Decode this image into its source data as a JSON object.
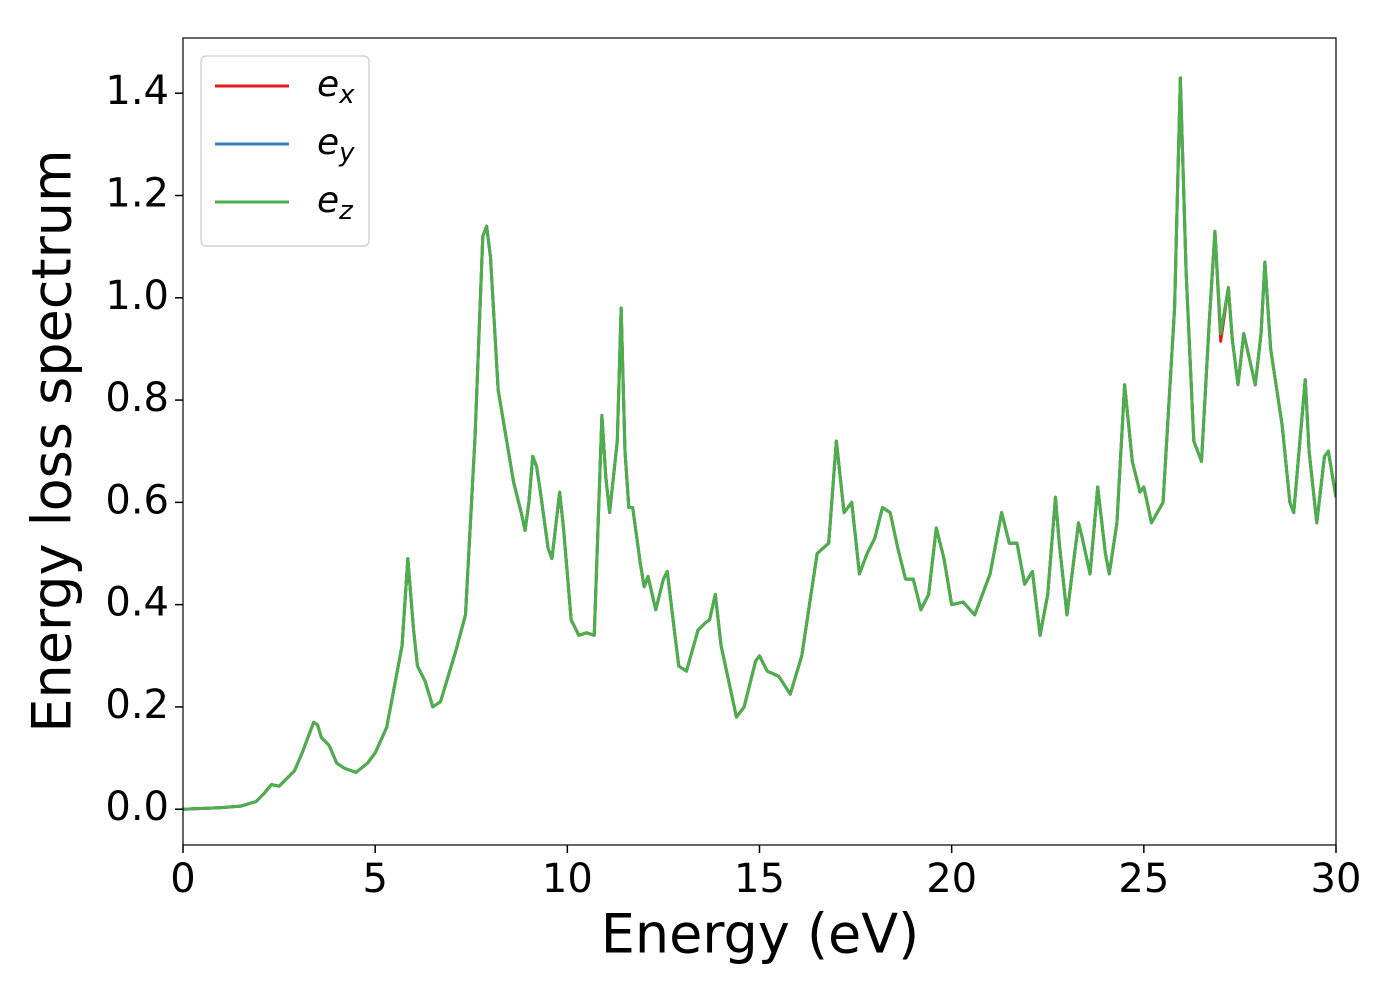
{
  "chart_data": {
    "type": "line",
    "xlabel": "Energy (eV)",
    "ylabel": "Energy loss spectrum",
    "xlim": [
      0,
      30
    ],
    "ylim": [
      -0.07,
      1.508
    ],
    "xticks": [
      0,
      5,
      10,
      15,
      20,
      25,
      30
    ],
    "yticks": [
      {
        "value": 0,
        "label": "0.0"
      },
      {
        "value": 0.2,
        "label": "0.2"
      },
      {
        "value": 0.4,
        "label": "0.4"
      },
      {
        "value": 0.6,
        "label": "0.6"
      },
      {
        "value": 0.8,
        "label": "0.8"
      },
      {
        "value": 1.0,
        "label": "1.0"
      },
      {
        "value": 1.2,
        "label": "1.2"
      },
      {
        "value": 1.4,
        "label": "1.4"
      }
    ],
    "legend": "upper left",
    "x": [
      0,
      1,
      1.5,
      1.9,
      2.1,
      2.3,
      2.5,
      2.7,
      2.9,
      3.1,
      3.4,
      3.5,
      3.6,
      3.8,
      4.0,
      4.2,
      4.5,
      4.8,
      5.0,
      5.3,
      5.5,
      5.7,
      5.85,
      6.0,
      6.1,
      6.3,
      6.5,
      6.7,
      6.9,
      7.1,
      7.35,
      7.6,
      7.8,
      7.9,
      8.0,
      8.2,
      8.4,
      8.6,
      8.8,
      8.9,
      9.0,
      9.1,
      9.2,
      9.3,
      9.5,
      9.6,
      9.8,
      9.9,
      10.1,
      10.3,
      10.5,
      10.7,
      10.9,
      11.0,
      11.1,
      11.3,
      11.4,
      11.5,
      11.6,
      11.7,
      11.9,
      12.0,
      12.1,
      12.3,
      12.5,
      12.6,
      12.8,
      12.9,
      13.1,
      13.4,
      13.6,
      13.7,
      13.85,
      14.0,
      14.2,
      14.4,
      14.6,
      14.9,
      15.0,
      15.2,
      15.5,
      15.8,
      16.1,
      16.3,
      16.5,
      16.8,
      17.0,
      17.2,
      17.4,
      17.6,
      17.8,
      18.0,
      18.2,
      18.4,
      18.6,
      18.8,
      19.0,
      19.2,
      19.4,
      19.6,
      19.8,
      20.0,
      20.3,
      20.6,
      20.9,
      21.0,
      21.3,
      21.5,
      21.7,
      21.9,
      22.1,
      22.3,
      22.5,
      22.7,
      22.8,
      23.0,
      23.3,
      23.4,
      23.6,
      23.8,
      24.0,
      24.1,
      24.3,
      24.5,
      24.7,
      24.9,
      25.0,
      25.2,
      25.5,
      25.8,
      25.95,
      26.1,
      26.3,
      26.5,
      26.7,
      26.85,
      27.0,
      27.2,
      27.3,
      27.45,
      27.6,
      27.75,
      27.9,
      28.05,
      28.15,
      28.3,
      28.6,
      28.8,
      28.9,
      29.2,
      29.3,
      29.5,
      29.7,
      29.8,
      30.0
    ],
    "series": [
      {
        "name": "ex",
        "color": "#e41a1c",
        "values": [
          0,
          0.003,
          0.006,
          0.015,
          0.03,
          0.048,
          0.045,
          0.06,
          0.075,
          0.11,
          0.17,
          0.165,
          0.14,
          0.125,
          0.09,
          0.08,
          0.072,
          0.09,
          0.11,
          0.16,
          0.24,
          0.32,
          0.49,
          0.35,
          0.28,
          0.25,
          0.2,
          0.21,
          0.26,
          0.31,
          0.38,
          0.73,
          1.12,
          1.14,
          1.08,
          0.82,
          0.73,
          0.64,
          0.58,
          0.545,
          0.6,
          0.69,
          0.67,
          0.62,
          0.51,
          0.49,
          0.62,
          0.55,
          0.37,
          0.34,
          0.345,
          0.34,
          0.77,
          0.65,
          0.58,
          0.72,
          0.98,
          0.7,
          0.59,
          0.59,
          0.48,
          0.435,
          0.455,
          0.39,
          0.45,
          0.465,
          0.34,
          0.28,
          0.27,
          0.35,
          0.365,
          0.37,
          0.42,
          0.32,
          0.25,
          0.18,
          0.2,
          0.29,
          0.3,
          0.27,
          0.26,
          0.225,
          0.3,
          0.4,
          0.5,
          0.52,
          0.72,
          0.58,
          0.6,
          0.46,
          0.5,
          0.53,
          0.59,
          0.58,
          0.51,
          0.45,
          0.45,
          0.39,
          0.42,
          0.55,
          0.49,
          0.4,
          0.405,
          0.38,
          0.44,
          0.46,
          0.58,
          0.52,
          0.52,
          0.44,
          0.465,
          0.34,
          0.42,
          0.61,
          0.52,
          0.38,
          0.56,
          0.53,
          0.46,
          0.63,
          0.5,
          0.46,
          0.56,
          0.83,
          0.68,
          0.62,
          0.63,
          0.56,
          0.6,
          0.98,
          1.43,
          1.05,
          0.72,
          0.68,
          0.95,
          1.13,
          0.915,
          1.02,
          0.92,
          0.83,
          0.93,
          0.88,
          0.83,
          0.93,
          1.07,
          0.9,
          0.75,
          0.6,
          0.58,
          0.84,
          0.7,
          0.56,
          0.69,
          0.7,
          0.61
        ]
      },
      {
        "name": "ey",
        "color": "#377eb8",
        "values": [
          0,
          0.003,
          0.006,
          0.015,
          0.03,
          0.048,
          0.045,
          0.06,
          0.075,
          0.11,
          0.17,
          0.165,
          0.14,
          0.125,
          0.09,
          0.08,
          0.072,
          0.09,
          0.11,
          0.16,
          0.24,
          0.32,
          0.49,
          0.35,
          0.28,
          0.25,
          0.2,
          0.21,
          0.26,
          0.31,
          0.38,
          0.73,
          1.12,
          1.14,
          1.08,
          0.82,
          0.73,
          0.64,
          0.58,
          0.545,
          0.6,
          0.69,
          0.67,
          0.62,
          0.51,
          0.49,
          0.62,
          0.55,
          0.37,
          0.34,
          0.345,
          0.34,
          0.77,
          0.65,
          0.58,
          0.72,
          0.98,
          0.7,
          0.59,
          0.59,
          0.48,
          0.435,
          0.455,
          0.39,
          0.45,
          0.465,
          0.34,
          0.28,
          0.27,
          0.35,
          0.365,
          0.37,
          0.42,
          0.32,
          0.25,
          0.18,
          0.2,
          0.29,
          0.3,
          0.27,
          0.26,
          0.225,
          0.3,
          0.4,
          0.5,
          0.52,
          0.72,
          0.58,
          0.6,
          0.46,
          0.5,
          0.53,
          0.59,
          0.58,
          0.51,
          0.45,
          0.45,
          0.39,
          0.42,
          0.55,
          0.49,
          0.4,
          0.405,
          0.38,
          0.44,
          0.46,
          0.58,
          0.52,
          0.52,
          0.44,
          0.465,
          0.34,
          0.42,
          0.61,
          0.52,
          0.38,
          0.56,
          0.53,
          0.46,
          0.63,
          0.5,
          0.46,
          0.56,
          0.83,
          0.68,
          0.62,
          0.63,
          0.56,
          0.6,
          0.98,
          1.43,
          1.05,
          0.72,
          0.68,
          0.95,
          1.13,
          0.93,
          1.02,
          0.92,
          0.83,
          0.93,
          0.88,
          0.83,
          0.93,
          1.07,
          0.9,
          0.75,
          0.6,
          0.58,
          0.84,
          0.7,
          0.56,
          0.69,
          0.7,
          0.61
        ]
      },
      {
        "name": "ez",
        "color": "#4daf4a",
        "values": [
          0,
          0.003,
          0.006,
          0.015,
          0.03,
          0.048,
          0.045,
          0.06,
          0.075,
          0.11,
          0.17,
          0.165,
          0.14,
          0.125,
          0.09,
          0.08,
          0.072,
          0.09,
          0.11,
          0.16,
          0.24,
          0.32,
          0.49,
          0.35,
          0.28,
          0.25,
          0.2,
          0.21,
          0.26,
          0.31,
          0.38,
          0.73,
          1.12,
          1.14,
          1.08,
          0.82,
          0.73,
          0.64,
          0.58,
          0.545,
          0.6,
          0.69,
          0.67,
          0.62,
          0.51,
          0.49,
          0.62,
          0.55,
          0.37,
          0.34,
          0.345,
          0.34,
          0.77,
          0.65,
          0.58,
          0.72,
          0.98,
          0.7,
          0.59,
          0.59,
          0.48,
          0.435,
          0.455,
          0.39,
          0.45,
          0.465,
          0.34,
          0.28,
          0.27,
          0.35,
          0.365,
          0.37,
          0.42,
          0.32,
          0.25,
          0.18,
          0.2,
          0.29,
          0.3,
          0.27,
          0.26,
          0.225,
          0.3,
          0.4,
          0.5,
          0.52,
          0.72,
          0.58,
          0.6,
          0.46,
          0.5,
          0.53,
          0.59,
          0.58,
          0.51,
          0.45,
          0.45,
          0.39,
          0.42,
          0.55,
          0.49,
          0.4,
          0.405,
          0.38,
          0.44,
          0.46,
          0.58,
          0.52,
          0.52,
          0.44,
          0.465,
          0.34,
          0.42,
          0.61,
          0.52,
          0.38,
          0.56,
          0.53,
          0.46,
          0.63,
          0.5,
          0.46,
          0.56,
          0.83,
          0.68,
          0.62,
          0.63,
          0.56,
          0.6,
          0.98,
          1.43,
          1.05,
          0.72,
          0.68,
          0.95,
          1.13,
          0.93,
          1.02,
          0.92,
          0.83,
          0.93,
          0.88,
          0.83,
          0.93,
          1.07,
          0.9,
          0.75,
          0.6,
          0.58,
          0.84,
          0.7,
          0.56,
          0.69,
          0.7,
          0.61
        ]
      }
    ]
  }
}
